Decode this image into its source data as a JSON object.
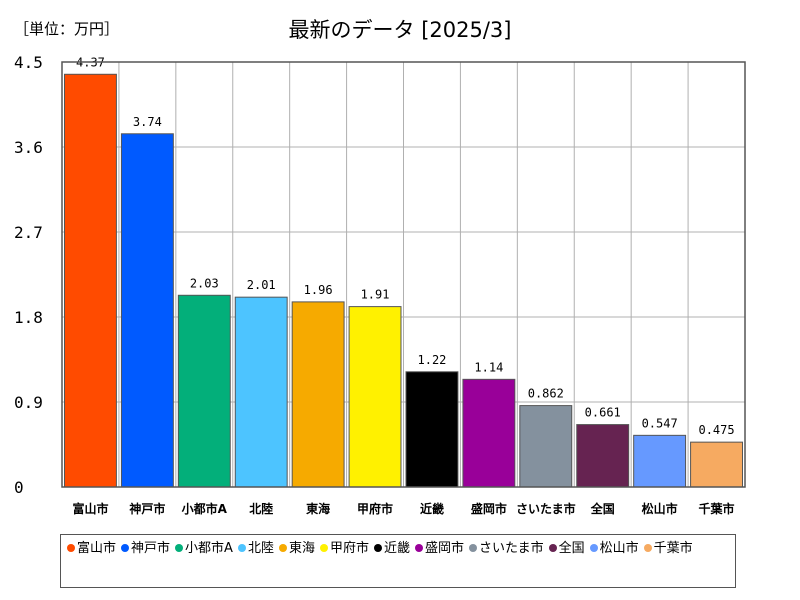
{
  "unit_label": "［単位：万円］",
  "title": "最新のデータ [2025/3]",
  "chart_data": {
    "type": "bar",
    "categories": [
      "富山市",
      "神戸市",
      "小都市A",
      "北陸",
      "東海",
      "甲府市",
      "近畿",
      "盛岡市",
      "さいたま市",
      "全国",
      "松山市",
      "千葉市"
    ],
    "values": [
      4.37,
      3.74,
      2.03,
      2.01,
      1.96,
      1.91,
      1.22,
      1.14,
      0.862,
      0.661,
      0.547,
      0.475
    ],
    "value_labels": [
      "4.37",
      "3.74",
      "2.03",
      "2.01",
      "1.96",
      "1.91",
      "1.22",
      "1.14",
      "0.862",
      "0.661",
      "0.547",
      "0.475"
    ],
    "colors": [
      "#ff4b00",
      "#005aff",
      "#03af7a",
      "#4dc4ff",
      "#f6aa00",
      "#fff100",
      "#000000",
      "#990099",
      "#84919e",
      "#662351",
      "#6699ff",
      "#f6aa61"
    ],
    "ylim": [
      0,
      4.5
    ],
    "yticks": [
      "0",
      "0.9",
      "1.8",
      "2.7",
      "3.6",
      "4.5"
    ],
    "grid": true,
    "legend_position": "bottom"
  }
}
